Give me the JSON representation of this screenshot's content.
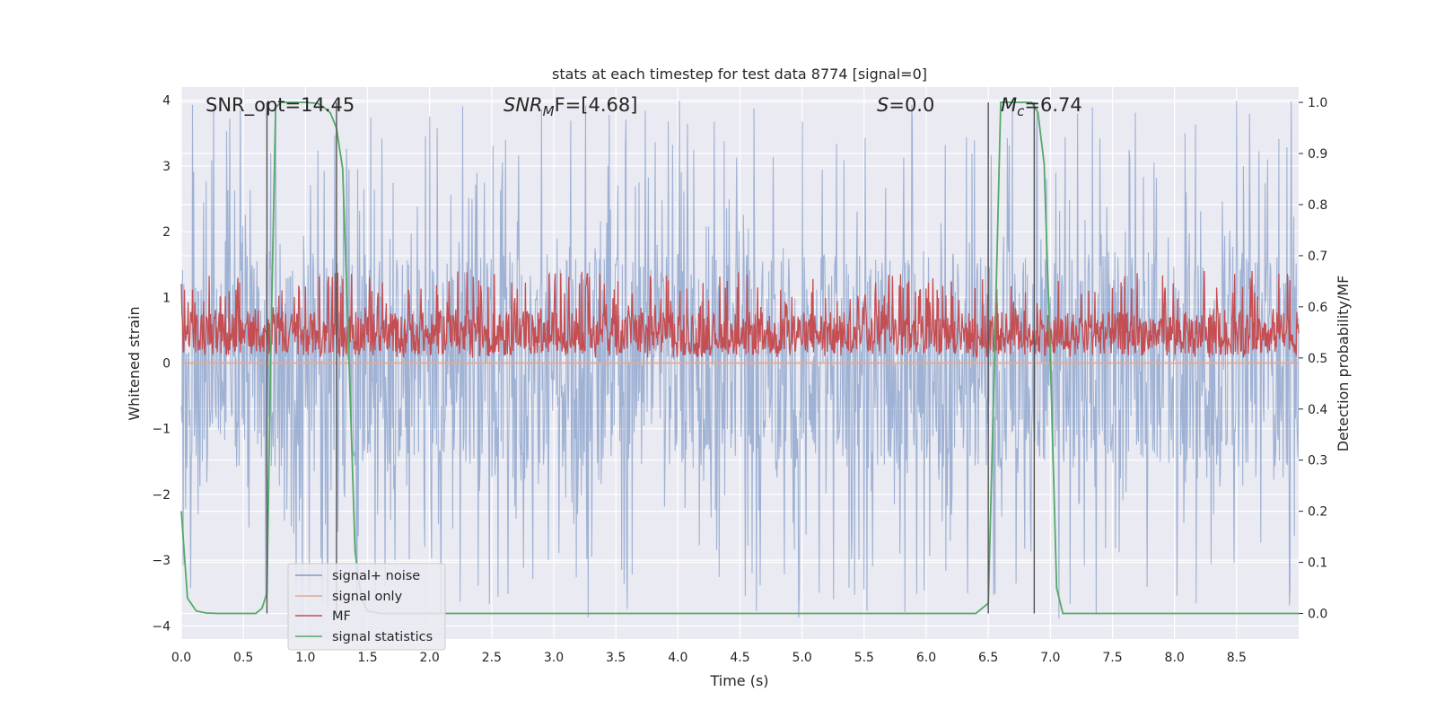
{
  "chart_data": {
    "type": "line",
    "title": "stats at each timestep for test data 8774 [signal=0]",
    "xlabel": "Time (s)",
    "ylabel": "Whitened strain",
    "ylabel_right": "Detection probability/MF",
    "xlim": [
      0,
      9.0
    ],
    "ylim": [
      -4.2,
      4.2
    ],
    "ylim_right": [
      -0.05,
      1.03
    ],
    "x_ticks": [
      0.0,
      0.5,
      1.0,
      1.5,
      2.0,
      2.5,
      3.0,
      3.5,
      4.0,
      4.5,
      5.0,
      5.5,
      6.0,
      6.5,
      7.0,
      7.5,
      8.0,
      8.5
    ],
    "x_tick_labels": [
      "0.0",
      "0.5",
      "1.0",
      "1.5",
      "2.0",
      "2.5",
      "3.0",
      "3.5",
      "4.0",
      "4.5",
      "5.0",
      "5.5",
      "6.0",
      "6.5",
      "7.0",
      "7.5",
      "8.0",
      "8.5"
    ],
    "y_ticks": [
      -4,
      -3,
      -2,
      -1,
      0,
      1,
      2,
      3,
      4
    ],
    "y_tick_labels": [
      "−4",
      "−3",
      "−2",
      "−1",
      "0",
      "1",
      "2",
      "3",
      "4"
    ],
    "y_right_ticks": [
      0.0,
      0.1,
      0.2,
      0.3,
      0.4,
      0.5,
      0.6,
      0.7,
      0.8,
      0.9,
      1.0
    ],
    "y_right_tick_labels": [
      "0.0",
      "0.1",
      "0.2",
      "0.3",
      "0.4",
      "0.5",
      "0.6",
      "0.7",
      "0.8",
      "0.9",
      "1.0"
    ],
    "annotations": {
      "snr_opt": "SNR_opt=14.45",
      "snr_mf_sym": "SNR",
      "snr_mf_sub": "M",
      "snr_mf_rest": "F=[4.68]",
      "s_sym": "S",
      "s_rest": "=0.0",
      "mc_sym": "M",
      "mc_sub": "c",
      "mc_rest": "=6.74"
    },
    "vertical_markers": [
      0.69,
      1.25,
      6.5,
      6.87
    ],
    "series": [
      {
        "name": "signal+ noise",
        "color": "#7f9ac8",
        "axis": "left",
        "kind": "noise",
        "n_samples": 1800,
        "core_range": [
          -1.6,
          1.7
        ],
        "extreme_range": [
          -3.9,
          4.0
        ]
      },
      {
        "name": "signal only",
        "color": "#e8a88a",
        "axis": "left",
        "kind": "flat",
        "x": [
          0.0,
          9.0
        ],
        "y": [
          0.0,
          0.0
        ]
      },
      {
        "name": "MF",
        "color": "#c44e52",
        "axis": "right",
        "kind": "noise",
        "n_samples": 1800,
        "core_range": [
          0.505,
          0.59
        ],
        "extreme_range": [
          0.5,
          0.67
        ]
      },
      {
        "name": "signal statistics",
        "color": "#55a868",
        "axis": "right",
        "kind": "line",
        "x": [
          0.0,
          0.05,
          0.12,
          0.2,
          0.3,
          0.6,
          0.65,
          0.69,
          0.72,
          0.76,
          0.8,
          1.0,
          1.1,
          1.15,
          1.2,
          1.25,
          1.3,
          1.35,
          1.4,
          1.45,
          1.5,
          1.6,
          2.0,
          6.4,
          6.5,
          6.55,
          6.6,
          6.85,
          6.9,
          6.95,
          7.0,
          7.05,
          7.1,
          9.0
        ],
        "y": [
          0.2,
          0.03,
          0.005,
          0.001,
          0.0,
          0.0,
          0.01,
          0.04,
          0.5,
          0.99,
          1.0,
          1.0,
          0.998,
          0.99,
          0.98,
          0.95,
          0.87,
          0.5,
          0.12,
          0.03,
          0.005,
          0.0,
          0.0,
          0.0,
          0.02,
          0.5,
          1.0,
          1.0,
          0.98,
          0.88,
          0.5,
          0.05,
          0.0,
          0.0
        ]
      }
    ],
    "legend_position": "bottom-left"
  }
}
